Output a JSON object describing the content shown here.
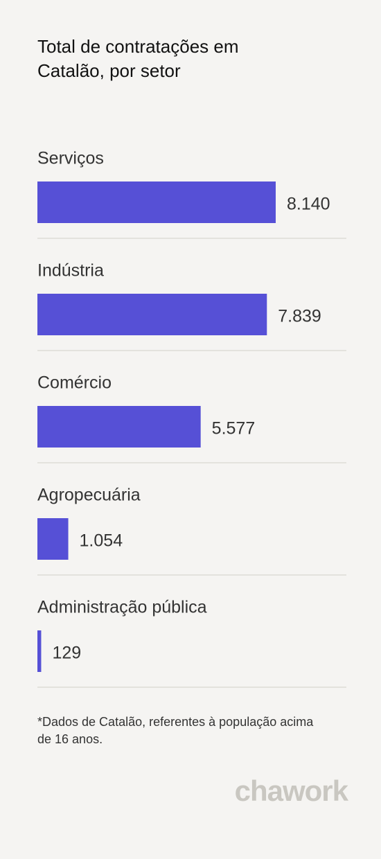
{
  "chart_data": {
    "type": "bar",
    "orientation": "horizontal",
    "title": "Total de contratações em Catalão, por setor",
    "categories": [
      "Serviços",
      "Indústria",
      "Comércio",
      "Agropecuária",
      "Administração pública"
    ],
    "values": [
      8140,
      7839,
      5577,
      1054,
      129
    ],
    "value_labels": [
      "8.140",
      "7.839",
      "5.577",
      "1.054",
      "129"
    ],
    "color": "#5650d6",
    "note": "*Dados de Catalão, referentes à população acima de 16 anos.",
    "brand": "chawork"
  }
}
